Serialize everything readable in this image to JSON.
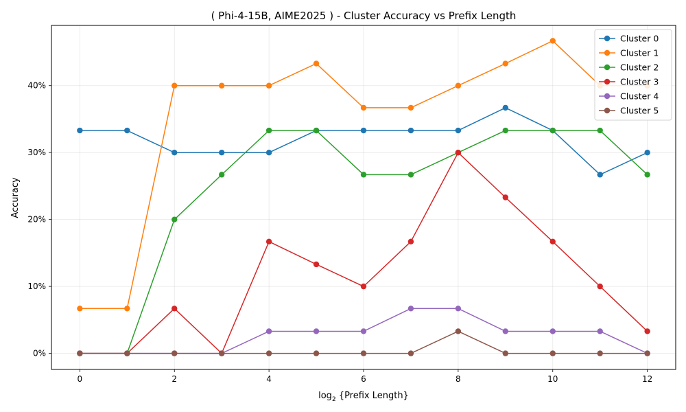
{
  "chart_data": {
    "type": "line",
    "title": "( Phi-4-15B, AIME2025 ) - Cluster Accuracy vs Prefix Length",
    "xlabel_prefix": "log",
    "xlabel_sub": "2",
    "xlabel_suffix": " {Prefix Length}",
    "ylabel": "Accuracy",
    "x": [
      0,
      1,
      2,
      3,
      4,
      5,
      6,
      7,
      8,
      9,
      10,
      11,
      12
    ],
    "xticks": [
      "0",
      "2",
      "4",
      "6",
      "8",
      "10",
      "12"
    ],
    "xtick_values": [
      0,
      2,
      4,
      6,
      8,
      10,
      12
    ],
    "ytick_values": [
      0,
      10,
      20,
      30,
      40
    ],
    "ytick_labels": [
      "0%",
      "10%",
      "20%",
      "30%",
      "40%"
    ],
    "xlim": [
      -0.6,
      12.6
    ],
    "ylim": [
      -2.4,
      49.0
    ],
    "grid": true,
    "legend_position": "top-right",
    "series": [
      {
        "name": "Cluster 0",
        "color": "#1f77b4",
        "values": [
          33.3,
          33.3,
          30.0,
          30.0,
          30.0,
          33.3,
          33.3,
          33.3,
          33.3,
          36.7,
          33.3,
          26.7,
          30.0
        ]
      },
      {
        "name": "Cluster 1",
        "color": "#ff7f0e",
        "values": [
          6.7,
          6.7,
          40.0,
          40.0,
          40.0,
          43.3,
          36.7,
          36.7,
          40.0,
          43.3,
          46.7,
          40.0,
          40.0
        ]
      },
      {
        "name": "Cluster 2",
        "color": "#2ca02c",
        "values": [
          0.0,
          0.0,
          20.0,
          26.7,
          33.3,
          33.3,
          26.7,
          26.7,
          30.0,
          33.3,
          33.3,
          33.3,
          26.7
        ]
      },
      {
        "name": "Cluster 3",
        "color": "#d62728",
        "values": [
          0.0,
          0.0,
          6.7,
          0.0,
          16.7,
          13.3,
          10.0,
          16.7,
          30.0,
          23.3,
          16.7,
          10.0,
          3.3
        ]
      },
      {
        "name": "Cluster 4",
        "color": "#9467bd",
        "values": [
          0.0,
          0.0,
          0.0,
          0.0,
          3.3,
          3.3,
          3.3,
          6.7,
          6.7,
          3.3,
          3.3,
          3.3,
          0.0
        ]
      },
      {
        "name": "Cluster 5",
        "color": "#8c564b",
        "values": [
          0.0,
          0.0,
          0.0,
          0.0,
          0.0,
          0.0,
          0.0,
          0.0,
          3.3,
          0.0,
          0.0,
          0.0,
          0.0
        ]
      }
    ]
  }
}
